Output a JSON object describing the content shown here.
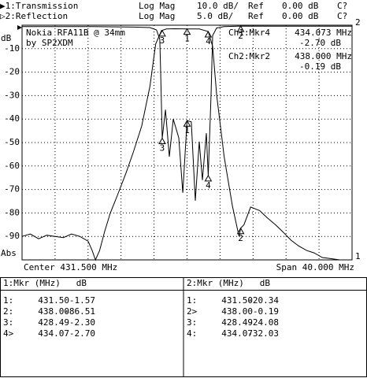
{
  "header": {
    "rows": [
      [
        "▶1:Transmission",
        "Log Mag",
        "10.0 dB/",
        "Ref",
        "0.00 dB",
        "C?"
      ],
      [
        "▷2:Reflection",
        "Log Mag",
        "5.0 dB/",
        "Ref",
        "0.00 dB",
        "C?"
      ]
    ]
  },
  "chart_data": {
    "type": "line",
    "title": "Nokia RFA11B @ 34mm",
    "subtitle": "by SP2XDM",
    "y_unit": "dB",
    "y_mode": "Abs",
    "center_label": "Center 431.500 MHz",
    "span_label": "Span 40.000 MHz",
    "readouts": [
      [
        "Ch1:Mkr4",
        "434.073 MHz",
        "-2.70 dB"
      ],
      [
        "Ch2:Mkr2",
        "438.000 MHz",
        "-0.19 dB"
      ]
    ],
    "xlim": [
      411.5,
      451.5
    ],
    "x_divisions": 10,
    "ylim": [
      -100,
      0
    ],
    "yticks": [
      -10,
      -20,
      -30,
      -40,
      -50,
      -60,
      -70,
      -80,
      -90
    ],
    "y2lim": [
      -50,
      0
    ],
    "grid": true,
    "series": [
      {
        "name": "Transmission",
        "end_label": "1",
        "color": "#000000",
        "axis": "y",
        "x": [
          411.5,
          412.5,
          413.5,
          414.5,
          415.5,
          416.5,
          417.5,
          418.5,
          419.5,
          420.0,
          420.4,
          420.9,
          421.5,
          422.2,
          423.0,
          424.1,
          425.0,
          426.0,
          427.0,
          427.7,
          428.4,
          429.0,
          430.0,
          431.5,
          433.0,
          434.07,
          434.6,
          435.1,
          436.0,
          437.0,
          437.8,
          438.0,
          438.4,
          439.2,
          440.3,
          441.2,
          442.2,
          443.1,
          444.1,
          445.0,
          446.0,
          446.9,
          447.9,
          449.0,
          450.0,
          451.5
        ],
        "values": [
          -90,
          -89,
          -91,
          -89.5,
          -90,
          -90.5,
          -89,
          -90,
          -92,
          -96,
          -100,
          -96,
          -88,
          -80,
          -73,
          -63,
          -54,
          -43,
          -26,
          -8,
          -2.3,
          -1.6,
          -1.5,
          -1.57,
          -1.6,
          -2.7,
          -9,
          -30,
          -56,
          -77,
          -90,
          -86.51,
          -85,
          -77.5,
          -79,
          -82,
          -85,
          -88,
          -91.6,
          -94,
          -96,
          -97,
          -99,
          -99.5,
          -100,
          -100
        ]
      },
      {
        "name": "Reflection",
        "end_label": "2",
        "color": "#000000",
        "axis": "y2",
        "x": [
          411.5,
          415,
          420,
          425,
          427.0,
          427.8,
          428.2,
          428.3,
          428.49,
          428.88,
          429.35,
          429.83,
          430.5,
          430.98,
          431.5,
          432.02,
          432.5,
          432.98,
          433.36,
          433.84,
          434.07,
          434.41,
          434.6,
          435.08,
          436,
          438,
          442,
          446,
          451.5
        ],
        "values": [
          -0.3,
          -0.3,
          -0.3,
          -0.4,
          -0.5,
          -1,
          -3,
          -10,
          -24.08,
          -18,
          -28,
          -20,
          -24,
          -35.7,
          -20.34,
          -20.6,
          -37.4,
          -24.8,
          -33,
          -23,
          -32.03,
          -14.8,
          -2.2,
          -0.6,
          -0.3,
          -0.19,
          -0.2,
          -0.2,
          -0.2
        ]
      }
    ]
  },
  "marker_tables": [
    {
      "head": [
        "1:Mkr (MHz)",
        "dB"
      ],
      "rows": [
        {
          "id": "1:",
          "mark": "1",
          "freq": {
            "value": 431.5,
            "label": "431.50"
          },
          "db": -1.57
        },
        {
          "id": "2:",
          "mark": "2",
          "freq": {
            "value": 438,
            "label": "438.00"
          },
          "db": -86.51
        },
        {
          "id": "3:",
          "mark": "3",
          "freq": 428.49,
          "db": {
            "value": -2.3,
            "label": "-2.30"
          }
        },
        {
          "id": "4>",
          "mark": "4",
          "freq": 434.07,
          "db": {
            "value": -2.7,
            "label": "-2.70"
          }
        }
      ]
    },
    {
      "head": [
        "2:Mkr (MHz)",
        "dB"
      ],
      "rows": [
        {
          "id": "1:",
          "mark": "1",
          "freq": {
            "value": 431.5,
            "label": "431.50"
          },
          "db": -20.34
        },
        {
          "id": "2>",
          "mark": "2",
          "freq": {
            "value": 438,
            "label": "438.00"
          },
          "db": -0.19
        },
        {
          "id": "3:",
          "mark": "3",
          "freq": 428.49,
          "db": -24.08
        },
        {
          "id": "4:",
          "mark": "4",
          "freq": 434.07,
          "db": -32.03
        }
      ]
    }
  ]
}
